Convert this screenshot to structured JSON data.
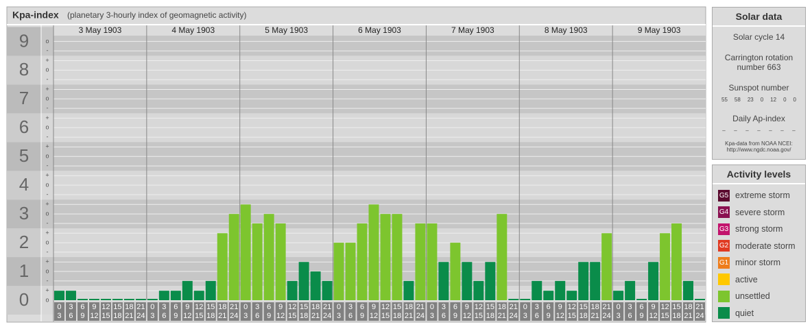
{
  "chart_data": {
    "type": "bar",
    "title": "Kpa-index",
    "subtitle": "(planetary 3-hourly index of geomagnetic activity)",
    "categories": [
      "3 May 1903",
      "4 May 1903",
      "5 May 1903",
      "6 May 1903",
      "7 May 1903",
      "8 May 1903",
      "9 May 1903"
    ],
    "x_hours": [
      [
        "0",
        "3"
      ],
      [
        "3",
        "6"
      ],
      [
        "6",
        "9"
      ],
      [
        "9",
        "12"
      ],
      [
        "12",
        "15"
      ],
      [
        "15",
        "18"
      ],
      [
        "18",
        "21"
      ],
      [
        "21",
        "24"
      ]
    ],
    "values": [
      [
        0.33,
        0.33,
        0,
        0,
        0,
        0,
        0,
        0
      ],
      [
        0,
        0.33,
        0.33,
        0.67,
        0.33,
        0.67,
        2.33,
        3
      ],
      [
        3.33,
        2.67,
        3,
        2.67,
        0.67,
        1.33,
        1,
        0.67
      ],
      [
        2,
        2,
        2.67,
        3.33,
        3,
        3,
        0.67,
        2.67
      ],
      [
        2.67,
        1.33,
        2,
        1.33,
        0.67,
        1.33,
        3,
        0
      ],
      [
        0,
        0.67,
        0.33,
        0.67,
        0.33,
        1.33,
        1.33,
        2.33
      ],
      [
        0.33,
        0.67,
        0,
        1.33,
        2.33,
        2.67,
        0.67,
        0
      ]
    ],
    "colors": [
      [
        "#0a8c4a",
        "#0a8c4a",
        "#0a8c4a",
        "#0a8c4a",
        "#0a8c4a",
        "#0a8c4a",
        "#0a8c4a",
        "#0a8c4a"
      ],
      [
        "#0a8c4a",
        "#0a8c4a",
        "#0a8c4a",
        "#0a8c4a",
        "#0a8c4a",
        "#0a8c4a",
        "#7dc52e",
        "#7dc52e"
      ],
      [
        "#7dc52e",
        "#7dc52e",
        "#7dc52e",
        "#7dc52e",
        "#0a8c4a",
        "#0a8c4a",
        "#0a8c4a",
        "#0a8c4a"
      ],
      [
        "#7dc52e",
        "#7dc52e",
        "#7dc52e",
        "#7dc52e",
        "#7dc52e",
        "#7dc52e",
        "#0a8c4a",
        "#7dc52e"
      ],
      [
        "#7dc52e",
        "#0a8c4a",
        "#7dc52e",
        "#0a8c4a",
        "#0a8c4a",
        "#0a8c4a",
        "#7dc52e",
        "#0a8c4a"
      ],
      [
        "#0a8c4a",
        "#0a8c4a",
        "#0a8c4a",
        "#0a8c4a",
        "#0a8c4a",
        "#0a8c4a",
        "#0a8c4a",
        "#7dc52e"
      ],
      [
        "#0a8c4a",
        "#0a8c4a",
        "#0a8c4a",
        "#0a8c4a",
        "#7dc52e",
        "#7dc52e",
        "#0a8c4a",
        "#0a8c4a"
      ]
    ],
    "ylim": [
      0,
      9.2
    ],
    "yticks": [
      0,
      1,
      2,
      3,
      4,
      5,
      6,
      7,
      8,
      9
    ],
    "minor_yticks": [
      {
        "value": 0,
        "label": "o"
      },
      {
        "value": 0.33,
        "label": "+"
      },
      {
        "value": 0.67,
        "label": "-"
      },
      {
        "value": 1,
        "label": "o"
      },
      {
        "value": 1.33,
        "label": "+"
      },
      {
        "value": 1.67,
        "label": "-"
      },
      {
        "value": 2,
        "label": "o"
      },
      {
        "value": 2.33,
        "label": "+"
      },
      {
        "value": 2.67,
        "label": "-"
      },
      {
        "value": 3,
        "label": "o"
      },
      {
        "value": 3.33,
        "label": "+"
      },
      {
        "value": 3.67,
        "label": "-"
      },
      {
        "value": 4,
        "label": "o"
      },
      {
        "value": 4.33,
        "label": "+"
      },
      {
        "value": 4.67,
        "label": "-"
      },
      {
        "value": 5,
        "label": "o"
      },
      {
        "value": 5.33,
        "label": "+"
      },
      {
        "value": 5.67,
        "label": "-"
      },
      {
        "value": 6,
        "label": "o"
      },
      {
        "value": 6.33,
        "label": "+"
      },
      {
        "value": 6.67,
        "label": "-"
      },
      {
        "value": 7,
        "label": "o"
      },
      {
        "value": 7.33,
        "label": "+"
      },
      {
        "value": 7.67,
        "label": "-"
      },
      {
        "value": 8,
        "label": "o"
      },
      {
        "value": 8.33,
        "label": "+"
      },
      {
        "value": 8.67,
        "label": "-"
      },
      {
        "value": 9,
        "label": "o"
      }
    ],
    "grid": true,
    "solar_data": {
      "title": "Solar data",
      "cycle": "Solar cycle 14",
      "carrington": "Carrington rotation number 663",
      "sunspot_label": "Sunspot number",
      "sunspot_numbers": [
        55,
        58,
        23,
        0,
        12,
        0,
        0
      ],
      "ap_label": "Daily Ap-index",
      "ap_values": [
        "–",
        "–",
        "–",
        "–",
        "–",
        "–",
        "–"
      ],
      "source": "Kpa-data from NOAA NCEI:",
      "url": "http://www.ngdc.noaa.gov/"
    },
    "legend": {
      "title": "Activity levels",
      "levels": [
        {
          "badge": "G5",
          "name": "extreme storm",
          "color": "#5a0a2e"
        },
        {
          "badge": "G4",
          "name": "severe storm",
          "color": "#8a1050"
        },
        {
          "badge": "G3",
          "name": "strong storm",
          "color": "#c2136c"
        },
        {
          "badge": "G2",
          "name": "moderate storm",
          "color": "#e03a22"
        },
        {
          "badge": "G1",
          "name": "minor storm",
          "color": "#ee7d1c"
        },
        {
          "name": "active",
          "color": "#ffc800"
        },
        {
          "name": "unsettled",
          "color": "#7dc52e"
        },
        {
          "name": "quiet",
          "color": "#0a8c4a"
        }
      ]
    }
  }
}
